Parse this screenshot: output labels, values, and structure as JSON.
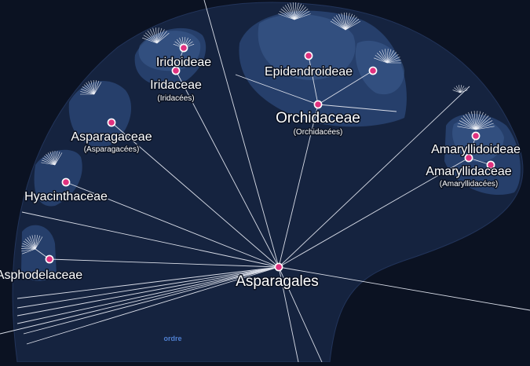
{
  "colors": {
    "background": "#0b1222",
    "order_region": "#15233f",
    "family_region": "#263f6b",
    "subfamily_region": "#3a5a8c",
    "node": "#e0327f",
    "edge": "#d9dde8",
    "region_tag": "#4f7fd0"
  },
  "tree": {
    "root": {
      "name": "Asparagales",
      "common": ""
    },
    "region_tag": "ordre",
    "families": [
      {
        "id": "asphodelaceae",
        "name": "Asphodelaceae",
        "common": ""
      },
      {
        "id": "hyacinthaceae",
        "name": "Hyacinthaceae",
        "common": ""
      },
      {
        "id": "asparagaceae",
        "name": "Asparagaceae",
        "common": "(Asparagacées)"
      },
      {
        "id": "iridaceae",
        "name": "Iridaceae",
        "common": "(Iridacées)"
      },
      {
        "id": "orchidaceae",
        "name": "Orchidaceae",
        "common": "(Orchidacées)"
      },
      {
        "id": "amaryllidaceae",
        "name": "Amaryllidaceae",
        "common": "(Amaryllidacées)"
      }
    ],
    "subfamilies": [
      {
        "id": "iridoideae",
        "name": "Iridoideae",
        "family": "iridaceae"
      },
      {
        "id": "epidendroideae",
        "name": "Epidendroideae",
        "family": "orchidaceae"
      },
      {
        "id": "amaryllidoideae",
        "name": "Amaryllidoideae",
        "family": "amaryllidaceae"
      }
    ]
  }
}
